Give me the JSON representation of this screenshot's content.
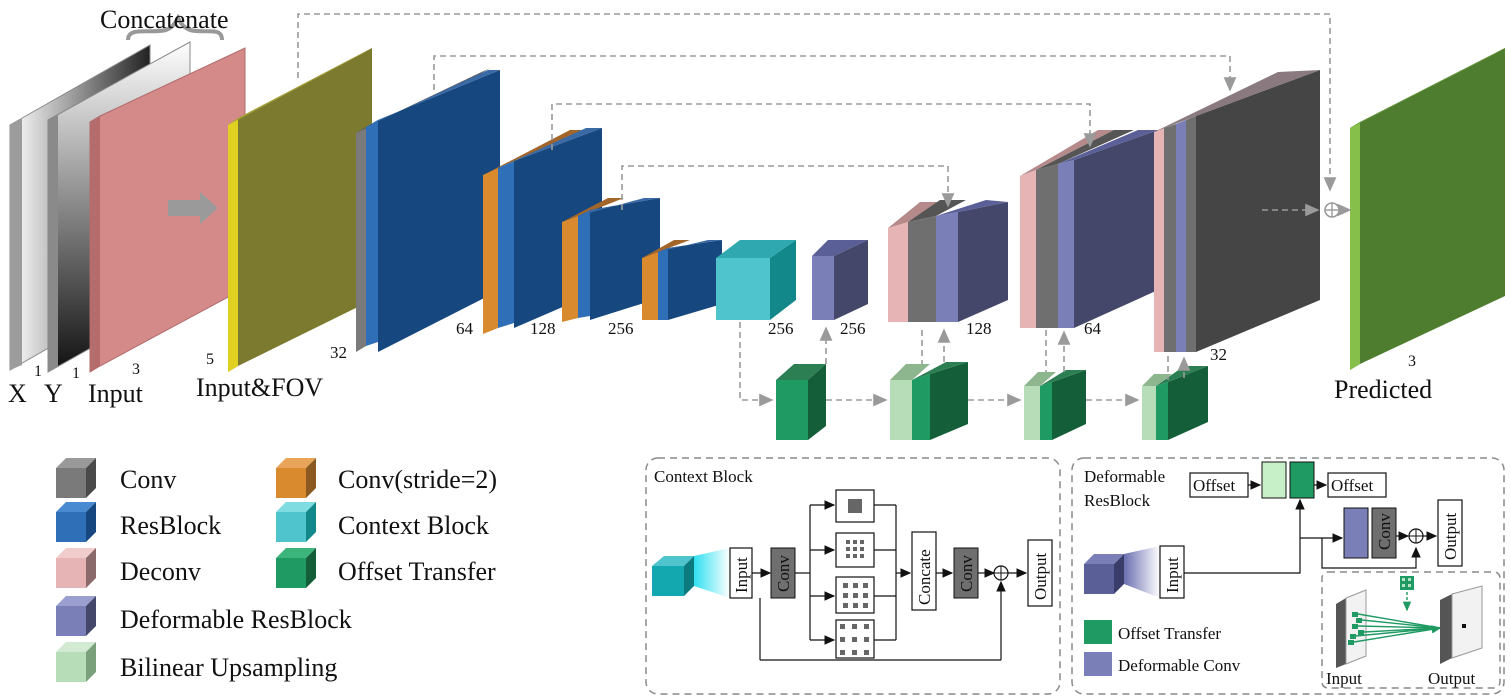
{
  "top": {
    "concatenate": "Concatenate",
    "x_label": "X",
    "y_label": "Y",
    "input_label": "Input",
    "input_fov_label": "Input&FOV",
    "predicted_label": "Predicted",
    "ch_x": "1",
    "ch_y": "1",
    "ch_input": "3",
    "ch_fov": "5",
    "ch_32": "32",
    "ch_64": "64",
    "ch_128": "128",
    "ch_256a": "256",
    "ch_256b": "256",
    "ch_256c": "256",
    "ch_128b": "128",
    "ch_64b": "64",
    "ch_32b": "32",
    "ch_pred": "3"
  },
  "legend": {
    "conv": "Conv",
    "conv_stride": "Conv(stride=2)",
    "resblock": "ResBlock",
    "context_block": "Context Block",
    "deconv": "Deconv",
    "offset_transfer": "Offset Transfer",
    "deformable_resblock": "Deformable ResBlock",
    "bilinear": "Bilinear Upsampling"
  },
  "context_panel": {
    "title": "Context Block",
    "input": "Input",
    "conv1": "Conv",
    "concate": "Concate",
    "conv2": "Conv",
    "output": "Output"
  },
  "deform_panel": {
    "title_line1": "Deformable",
    "title_line2": "ResBlock",
    "offset_in": "Offset",
    "offset_out": "Offset",
    "input": "Input",
    "conv": "Conv",
    "output": "Output",
    "legend_offset": "Offset Transfer",
    "legend_deform": "Deformable Conv",
    "inset_input": "Input",
    "inset_output": "Output"
  },
  "colors": {
    "conv": "#6f6f6f",
    "conv_stride": "#d98a2e",
    "resblock": "#2f6fb8",
    "context_block": "#4fc4cc",
    "deconv": "#e6b4b4",
    "offset_transfer": "#1f9a63",
    "deformable_resblock": "#7a7fb8",
    "bilinear": "#b7dcb8",
    "input_pink": "#d58a8a",
    "fov_olive": "#7c7a2f",
    "predicted_green": "#4e7d2f",
    "dark_block": "#454545"
  }
}
